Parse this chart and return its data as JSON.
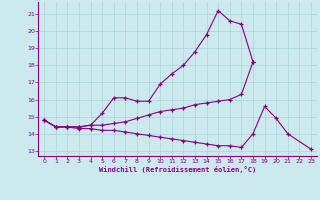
{
  "background_color": "#cce9ee",
  "grid_color": "#aad4da",
  "line_color": "#880088",
  "xlabel": "Windchill (Refroidissement éolien,°C)",
  "xlim": [
    -0.5,
    23.5
  ],
  "ylim": [
    12.7,
    21.7
  ],
  "yticks": [
    13,
    14,
    15,
    16,
    17,
    18,
    19,
    20,
    21
  ],
  "xticks": [
    0,
    1,
    2,
    3,
    4,
    5,
    6,
    7,
    8,
    9,
    10,
    11,
    12,
    13,
    14,
    15,
    16,
    17,
    18,
    19,
    20,
    21,
    22,
    23
  ],
  "line1_x": [
    0,
    1,
    2,
    3,
    4,
    5,
    6,
    7,
    8,
    9,
    10,
    11,
    12,
    13,
    14,
    15,
    16,
    17,
    18
  ],
  "line1_y": [
    14.8,
    14.4,
    14.4,
    14.4,
    14.5,
    15.2,
    16.1,
    16.1,
    15.9,
    15.9,
    16.9,
    17.5,
    18.0,
    18.8,
    19.8,
    21.2,
    20.6,
    20.4,
    18.2
  ],
  "line2_x": [
    0,
    1,
    2,
    3,
    4,
    5,
    6,
    7,
    8,
    9,
    10,
    11,
    12,
    13,
    14,
    15,
    16,
    17,
    18
  ],
  "line2_y": [
    14.8,
    14.4,
    14.4,
    14.4,
    14.5,
    14.5,
    14.6,
    14.7,
    14.9,
    15.1,
    15.3,
    15.4,
    15.5,
    15.7,
    15.8,
    15.9,
    16.0,
    16.3,
    18.2
  ],
  "line3_x": [
    0,
    1,
    2,
    3,
    4,
    5,
    6,
    7,
    8,
    9,
    10,
    11,
    12,
    13,
    14,
    15,
    16,
    17,
    18,
    19,
    20,
    21,
    23
  ],
  "line3_y": [
    14.8,
    14.4,
    14.4,
    14.3,
    14.3,
    14.2,
    14.2,
    14.1,
    14.0,
    13.9,
    13.8,
    13.7,
    13.6,
    13.5,
    13.4,
    13.3,
    13.3,
    13.2,
    14.0,
    15.6,
    14.9,
    14.0,
    13.1
  ]
}
